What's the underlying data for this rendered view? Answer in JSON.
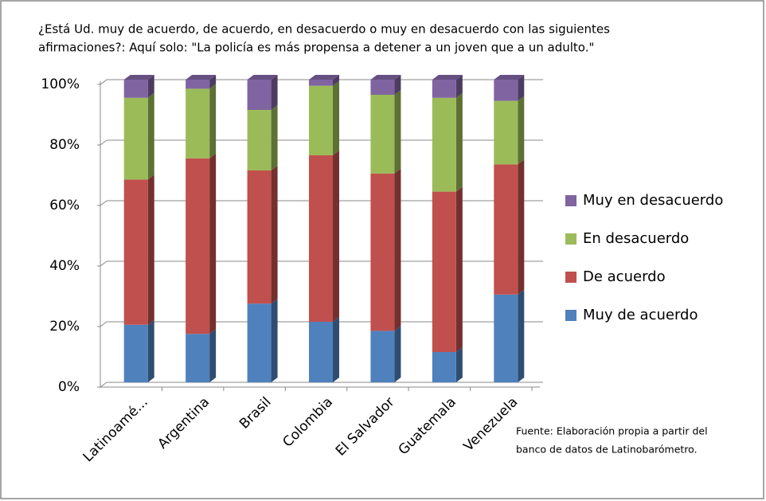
{
  "chart_data": {
    "type": "stacked-bar",
    "title": [
      "¿Está Ud. muy de acuerdo, de acuerdo, en desacuerdo o muy en desacuerdo con las siguientes",
      "afirmaciones?: Aquí solo: \"La policía es más propensa a detener a un joven que a un adulto.\""
    ],
    "categories": [
      "Latinoamé...",
      "Argentina",
      "Brasil",
      "Colombia",
      "El Salvador",
      "Guatemala",
      "Venezuela"
    ],
    "series": [
      {
        "name": "Muy de acuerdo",
        "color": "#4f81bd",
        "values": [
          19,
          16,
          26,
          20,
          17,
          10,
          29
        ]
      },
      {
        "name": "De acuerdo",
        "color": "#c0504d",
        "values": [
          48,
          58,
          44,
          55,
          52,
          53,
          43
        ]
      },
      {
        "name": "En desacuerdo",
        "color": "#9bbb59",
        "values": [
          27,
          23,
          20,
          23,
          26,
          31,
          21
        ]
      },
      {
        "name": "Muy en desacuerdo",
        "color": "#8064a2",
        "values": [
          6,
          3,
          10,
          2,
          5,
          6,
          7
        ]
      }
    ],
    "ylim": [
      0,
      100
    ],
    "yticks": [
      {
        "value": 0,
        "label": "0%"
      },
      {
        "value": 20,
        "label": "20%"
      },
      {
        "value": 40,
        "label": "40%"
      },
      {
        "value": 60,
        "label": "60%"
      },
      {
        "value": 80,
        "label": "80%"
      },
      {
        "value": 100,
        "label": "100%"
      }
    ],
    "grid": true,
    "legend": "right",
    "note": [
      "Fuente: Elaboración propia a partir del",
      "banco de datos de Latinobarómetro."
    ]
  }
}
